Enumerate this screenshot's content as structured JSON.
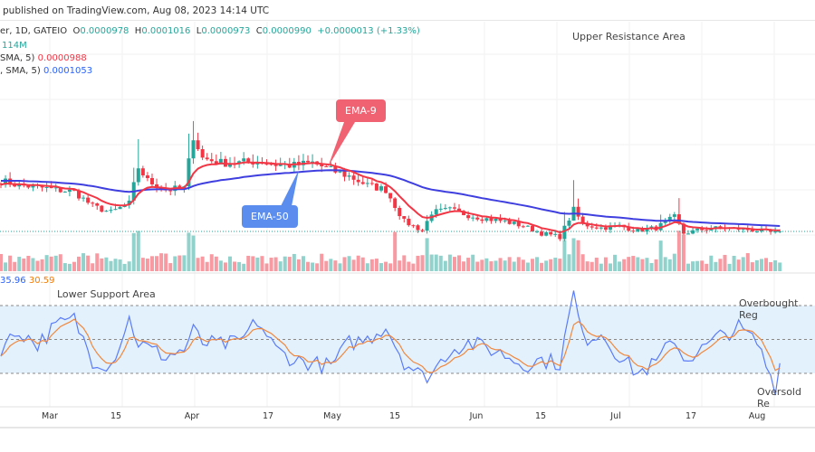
{
  "header": {
    "published": "published on TradingView.com, Aug 08, 2023 14:14 UTC"
  },
  "legend": {
    "symbol": "er, 1D, GATEIO",
    "o_label": "O",
    "open": "0.0000978",
    "h_label": "H",
    "high": "0.0001016",
    "l_label": "L",
    "low": "0.0000973",
    "c_label": "C",
    "close": "0.0000990",
    "change": "+0.0000013 (+1.33%)",
    "volume": "114M",
    "ema9_label": "SMA, 5)",
    "ema9_value": "0.0000988",
    "ema50_label": ", SMA, 5)",
    "ema50_value": "0.0001053",
    "rsi_value": "35.96",
    "rsi_ma_value": "30.59"
  },
  "annotations": {
    "upper": "Upper Resistance Area",
    "lower": "Lower Support Area",
    "ema9": "EMA-9",
    "ema50": "EMA-50",
    "overbought": "Overbought Reg",
    "oversold": "Oversold Re"
  },
  "colors": {
    "up": "#26a69a",
    "down": "#f23645",
    "ema9": "#f23645",
    "ema50": "#3f3fe0",
    "rsi": "#5b7cf7",
    "rsi_ma": "#f0883e",
    "rsi_band": "#e3f1fd",
    "ema50_callout": "#5b8def",
    "ema9_callout": "#f06272"
  },
  "chart_data": {
    "type": "candlestick",
    "x_ticks": [
      "Mar",
      "15",
      "Apr",
      "17",
      "May",
      "15",
      "Jun",
      "15",
      "Jul",
      "17",
      "Aug"
    ],
    "dates": [
      "2023-02-19",
      "2023-02-23",
      "2023-02-27",
      "2023-03-03",
      "2023-03-07",
      "2023-03-11",
      "2023-03-15",
      "2023-03-19",
      "2023-03-21",
      "2023-03-23",
      "2023-03-27",
      "2023-03-31",
      "2023-04-02",
      "2023-04-04",
      "2023-04-08",
      "2023-04-12",
      "2023-04-16",
      "2023-04-20",
      "2023-04-24",
      "2023-04-28",
      "2023-05-02",
      "2023-05-06",
      "2023-05-10",
      "2023-05-14",
      "2023-05-18",
      "2023-05-22",
      "2023-05-24",
      "2023-05-28",
      "2023-06-01",
      "2023-06-05",
      "2023-06-09",
      "2023-06-13",
      "2023-06-17",
      "2023-06-21",
      "2023-06-24",
      "2023-06-26",
      "2023-06-30",
      "2023-07-04",
      "2023-07-08",
      "2023-07-12",
      "2023-07-16",
      "2023-07-18",
      "2023-07-22",
      "2023-07-26",
      "2023-07-30",
      "2023-08-03",
      "2023-08-07",
      "2023-08-08"
    ],
    "close": [
      0.0001593,
      0.0001539,
      0.0001517,
      0.0001485,
      0.0001463,
      0.000129,
      0.0001215,
      0.0001323,
      0.0001755,
      0.0001593,
      0.0001485,
      0.0001506,
      0.0002133,
      0.0001863,
      0.0001809,
      0.0001809,
      0.000183,
      0.0001787,
      0.0001776,
      0.0001809,
      0.0001722,
      0.0001647,
      0.0001539,
      0.0001485,
      0.0001107,
      9.99e-05,
      0.0001215,
      0.0001247,
      0.0001182,
      0.0001139,
      0.0001107,
      0.0001053,
      9.66e-05,
      9.23e-05,
      0.0001247,
      0.0001074,
      0.0001031,
      0.0001053,
      9.99e-05,
      0.0001031,
      0.0001161,
      9.66e-05,
      0.000101,
      0.0001031,
      0.000102,
      9.99e-05,
      9.66e-05,
      9.9e-05
    ],
    "rsi": [
      45,
      55,
      47,
      58,
      62,
      38,
      35,
      62,
      48,
      45,
      40,
      44,
      55,
      48,
      47,
      48,
      61,
      44,
      38,
      36,
      34,
      48,
      50,
      58,
      37,
      28,
      30,
      44,
      48,
      45,
      41,
      35,
      38,
      36,
      77,
      50,
      54,
      40,
      30,
      36,
      51,
      38,
      44,
      52,
      57,
      48,
      22,
      36
    ],
    "rsi_levels": {
      "overbought": 70,
      "middle": 50,
      "oversold": 30
    },
    "series": [
      {
        "name": "EMA-9"
      },
      {
        "name": "EMA-50"
      }
    ]
  }
}
